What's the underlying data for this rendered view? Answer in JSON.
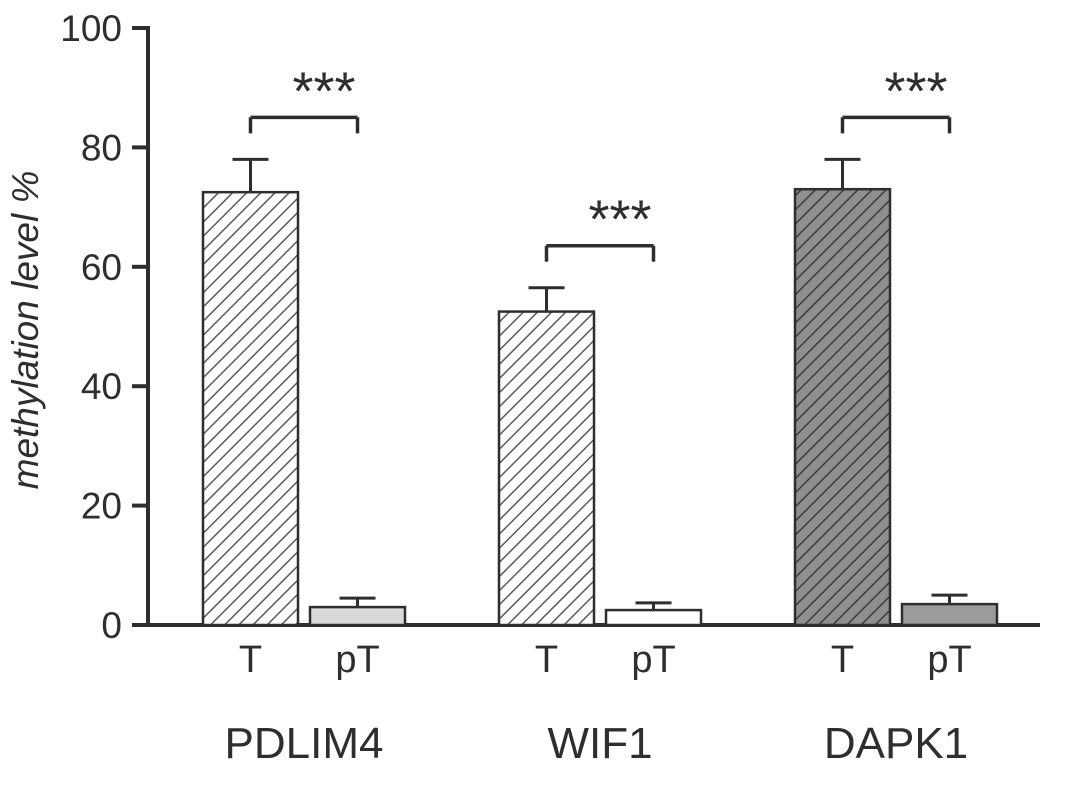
{
  "chart_data": {
    "type": "bar",
    "title": "",
    "ylabel": "methylation level %",
    "xlabel": "",
    "ylim": [
      0,
      100
    ],
    "yticks": [
      0,
      20,
      40,
      60,
      80,
      100
    ],
    "grid": false,
    "legend_position": "none",
    "groups": [
      {
        "label": "PDLIM4",
        "significance": "***",
        "bars": [
          {
            "label": "T",
            "value": 72.5,
            "error": 5.5,
            "style": "hatch_light"
          },
          {
            "label": "pT",
            "value": 3.0,
            "error": 1.5,
            "style": "solid_light_gray"
          }
        ]
      },
      {
        "label": "WIF1",
        "significance": "***",
        "bars": [
          {
            "label": "T",
            "value": 52.5,
            "error": 4.0,
            "style": "hatch_light"
          },
          {
            "label": "pT",
            "value": 2.5,
            "error": 1.2,
            "style": "solid_white"
          }
        ]
      },
      {
        "label": "DAPK1",
        "significance": "***",
        "bars": [
          {
            "label": "T",
            "value": 73.0,
            "error": 5.0,
            "style": "hatch_dark"
          },
          {
            "label": "pT",
            "value": 3.5,
            "error": 1.5,
            "style": "solid_gray"
          }
        ]
      }
    ],
    "colors": {
      "ink": "#2e2e2e",
      "background": "#ffffff",
      "hatch_light_bg": "#ffffff",
      "hatch_light_line": "#5a5a5a",
      "hatch_dark_bg": "#8f8f8f",
      "hatch_dark_line": "#3c3c3c",
      "solid_light_gray": "#d9d9d9",
      "solid_white": "#ffffff",
      "solid_gray": "#9c9c9c"
    }
  }
}
